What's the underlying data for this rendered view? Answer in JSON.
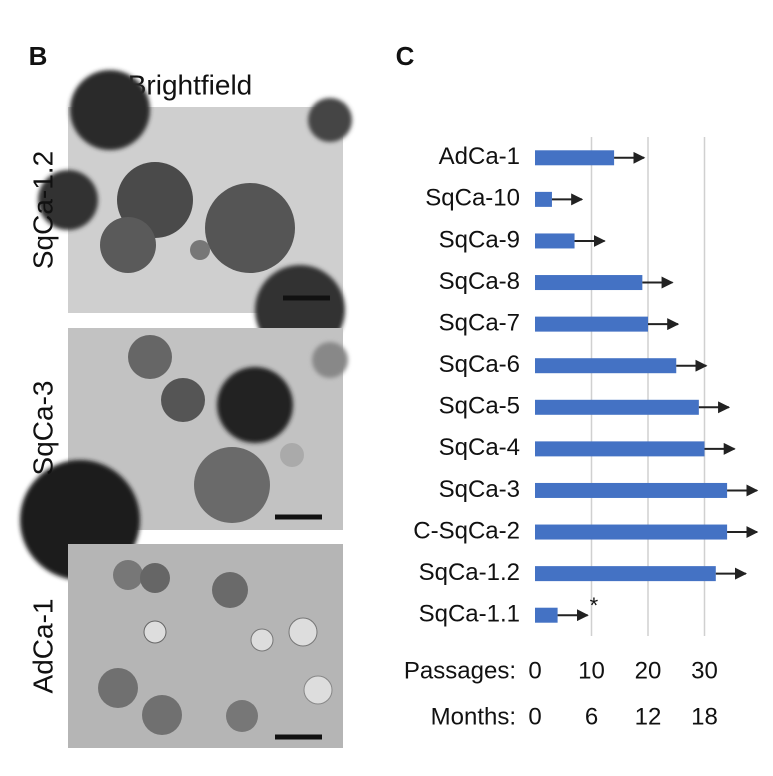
{
  "panel_b": {
    "label": "B",
    "title": "Brightfield",
    "rows": [
      "SqCa-1.2",
      "SqCa-3",
      "AdCa-1"
    ]
  },
  "chart_data": {
    "type": "bar",
    "orientation": "horizontal",
    "label": "C",
    "categories": [
      "AdCa-1",
      "SqCa-10",
      "SqCa-9",
      "SqCa-8",
      "SqCa-7",
      "SqCa-6",
      "SqCa-5",
      "SqCa-4",
      "SqCa-3",
      "C-SqCa-2",
      "SqCa-1.2",
      "SqCa-1.1"
    ],
    "values": [
      14,
      3,
      7,
      19,
      20,
      25,
      29,
      30,
      34,
      34,
      32,
      4
    ],
    "color": "#4472c4",
    "annotations": [
      {
        "text": "*",
        "category": "SqCa-1.1"
      }
    ],
    "xlabel": "Passages:",
    "xlim": [
      0,
      40
    ],
    "xticks": [
      0,
      10,
      20,
      30
    ],
    "x2label": "Months:",
    "x2lim": [
      0,
      24
    ],
    "x2ticks": [
      0,
      6,
      12,
      18
    ],
    "grid": true
  }
}
